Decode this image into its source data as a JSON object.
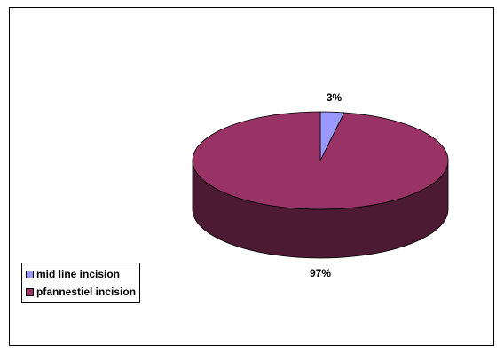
{
  "chart_data": {
    "type": "pie",
    "three_d": true,
    "categories": [
      "mid line incision",
      "pfannestiel incision"
    ],
    "values": [
      3,
      97
    ],
    "data_labels": [
      "3%",
      "97%"
    ],
    "colors": [
      "#9999ff",
      "#993366"
    ],
    "side_colors": [
      "#5c5c99",
      "#4d1a33"
    ],
    "legend": {
      "placement": "bottom-left",
      "entries": [
        "mid line incision",
        "pfannestiel incision"
      ]
    }
  }
}
